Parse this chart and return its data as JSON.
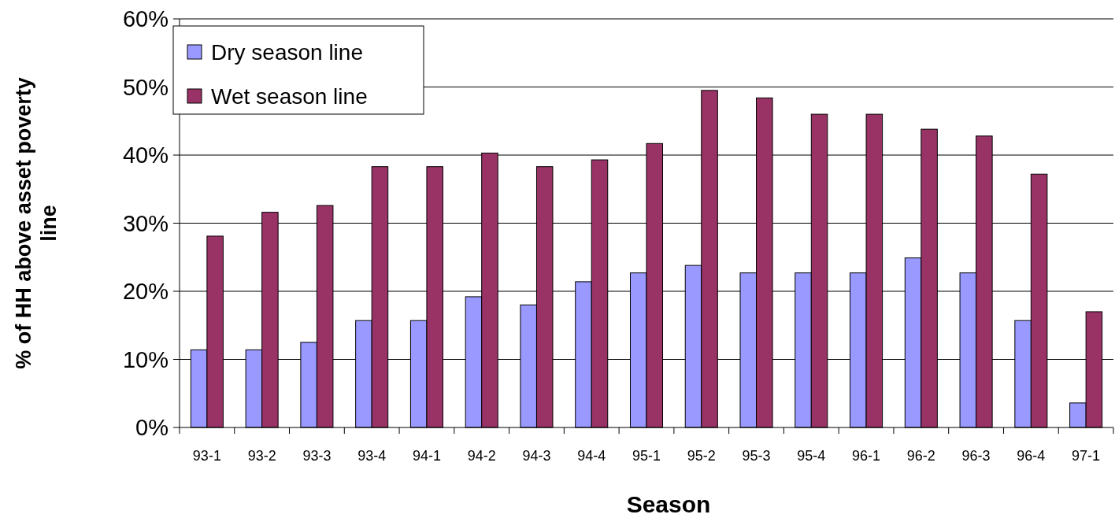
{
  "chart_data": {
    "type": "bar",
    "xlabel": "Season",
    "ylabel": "% of HH above asset poverty line",
    "categories": [
      "93-1",
      "93-2",
      "93-3",
      "93-4",
      "94-1",
      "94-2",
      "94-3",
      "94-4",
      "95-1",
      "95-2",
      "95-3",
      "95-4",
      "96-1",
      "96-2",
      "96-3",
      "96-4",
      "97-1"
    ],
    "series": [
      {
        "name": "Dry season line",
        "color": "#9999ff",
        "values": [
          11.4,
          11.4,
          12.5,
          15.7,
          15.7,
          19.2,
          18.0,
          21.4,
          22.7,
          23.8,
          22.7,
          22.7,
          22.7,
          24.9,
          22.7,
          15.7,
          3.6
        ]
      },
      {
        "name": "Wet season line",
        "color": "#993366",
        "values": [
          28.1,
          31.6,
          32.6,
          38.3,
          38.3,
          40.3,
          38.3,
          39.3,
          41.7,
          49.5,
          48.4,
          46.0,
          46.0,
          43.8,
          42.8,
          37.2,
          17.0
        ]
      }
    ],
    "ylim": [
      0,
      60
    ],
    "yticks": [
      {
        "value": 0,
        "label": "0%"
      },
      {
        "value": 10,
        "label": "10%"
      },
      {
        "value": 20,
        "label": "20%"
      },
      {
        "value": 30,
        "label": "30%"
      },
      {
        "value": 40,
        "label": "40%"
      },
      {
        "value": 50,
        "label": "50%"
      },
      {
        "value": 60,
        "label": "60%"
      }
    ],
    "grid": "y",
    "legend": "top left"
  }
}
